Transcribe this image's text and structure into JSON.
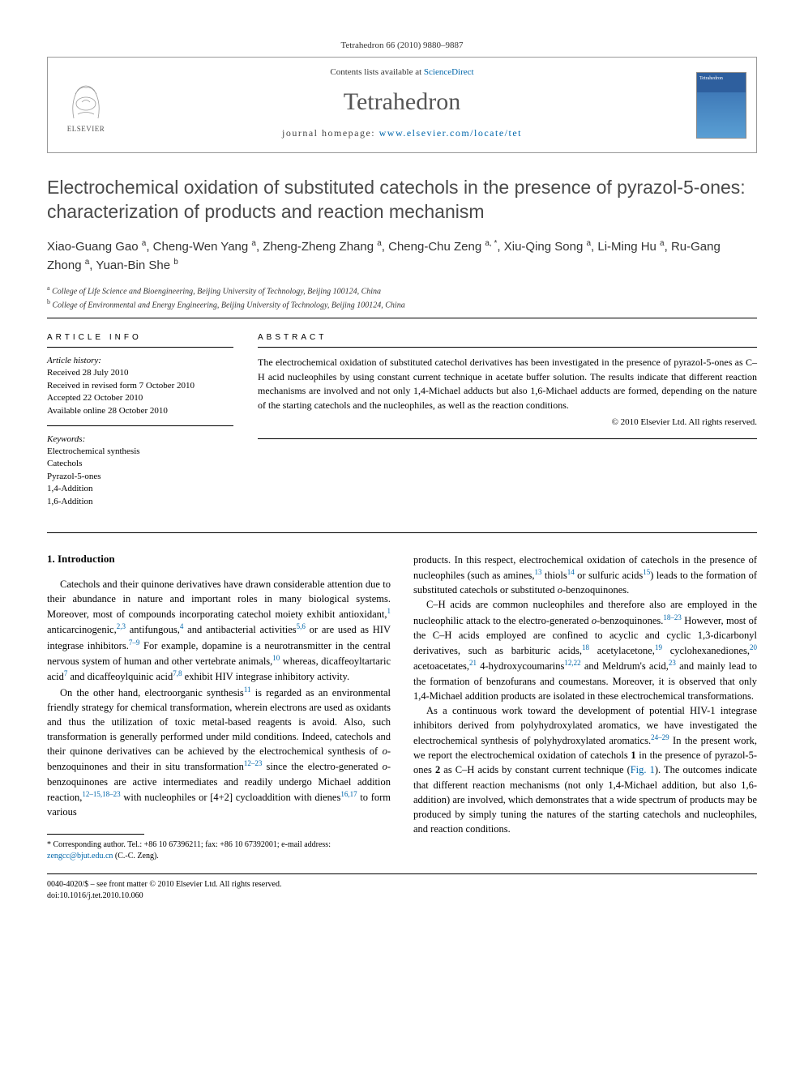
{
  "citation": "Tetrahedron 66 (2010) 9880–9887",
  "header": {
    "contents_line_prefix": "Contents lists available at ",
    "contents_link": "ScienceDirect",
    "journal": "Tetrahedron",
    "homepage_prefix": "journal homepage: ",
    "homepage_url": "www.elsevier.com/locate/tet",
    "elsevier": "ELSEVIER",
    "cover_text": "Tetrahedron"
  },
  "title": "Electrochemical oxidation of substituted catechols in the presence of pyrazol-5-ones: characterization of products and reaction mechanism",
  "authors_html": "Xiao-Guang Gao <sup>a</sup>, Cheng-Wen Yang <sup>a</sup>, Zheng-Zheng Zhang <sup>a</sup>, Cheng-Chu Zeng <sup>a, *</sup>, Xiu-Qing Song <sup>a</sup>, Li-Ming Hu <sup>a</sup>, Ru-Gang Zhong <sup>a</sup>, Yuan-Bin She <sup>b</sup>",
  "affiliations": [
    {
      "sup": "a",
      "text": "College of Life Science and Bioengineering, Beijing University of Technology, Beijing 100124, China"
    },
    {
      "sup": "b",
      "text": "College of Environmental and Energy Engineering, Beijing University of Technology, Beijing 100124, China"
    }
  ],
  "article_info": {
    "label": "ARTICLE INFO",
    "history_title": "Article history:",
    "history": [
      "Received 28 July 2010",
      "Received in revised form 7 October 2010",
      "Accepted 22 October 2010",
      "Available online 28 October 2010"
    ],
    "keywords_title": "Keywords:",
    "keywords": [
      "Electrochemical synthesis",
      "Catechols",
      "Pyrazol-5-ones",
      "1,4-Addition",
      "1,6-Addition"
    ]
  },
  "abstract": {
    "label": "ABSTRACT",
    "text": "The electrochemical oxidation of substituted catechol derivatives has been investigated in the presence of pyrazol-5-ones as C–H acid nucleophiles by using constant current technique in acetate buffer solution. The results indicate that different reaction mechanisms are involved and not only 1,4-Michael adducts but also 1,6-Michael adducts are formed, depending on the nature of the starting catechols and the nucleophiles, as well as the reaction conditions.",
    "copyright": "© 2010 Elsevier Ltd. All rights reserved."
  },
  "section_heading": "1. Introduction",
  "paragraphs": {
    "p1": "Catechols and their quinone derivatives have drawn considerable attention due to their abundance in nature and important roles in many biological systems. Moreover, most of compounds incorporating catechol moiety exhibit antioxidant,<sup>1</sup> anticarcinogenic,<sup>2,3</sup> antifungous,<sup>4</sup> and antibacterial activities<sup>5,6</sup> or are used as HIV integrase inhibitors.<sup>7–9</sup> For example, dopamine is a neurotransmitter in the central nervous system of human and other vertebrate animals,<sup>10</sup> whereas, dicaffeoyltartaric acid<sup>7</sup> and dicaffeoylquinic acid<sup>7,8</sup> exhibit HIV integrase inhibitory activity.",
    "p2": "On the other hand, electroorganic synthesis<sup>11</sup> is regarded as an environmental friendly strategy for chemical transformation, wherein electrons are used as oxidants and thus the utilization of toxic metal-based reagents is avoid. Also, such transformation is generally performed under mild conditions. Indeed, catechols and their quinone derivatives can be achieved by the electrochemical synthesis of <i>o</i>-benzoquinones and their in situ transformation<sup>12–23</sup> since the electro-generated <i>o</i>-benzoquinones are active intermediates and readily undergo Michael addition reaction,<sup>12–15,18–23</sup> with nucleophiles or [4+2] cycloaddition with dienes<sup>16,17</sup> to form various",
    "p3": "products. In this respect, electrochemical oxidation of catechols in the presence of nucleophiles (such as amines,<sup>13</sup> thiols<sup>14</sup> or sulfuric acids<sup>15</sup>) leads to the formation of substituted catechols or substituted <i>o</i>-benzoquinones.",
    "p4": "C–H acids are common nucleophiles and therefore also are employed in the nucleophilic attack to the electro-generated <i>o</i>-benzoquinones.<sup>18–23</sup> However, most of the C–H acids employed are confined to acyclic and cyclic 1,3-dicarbonyl derivatives, such as barbituric acids,<sup>18</sup> acetylacetone,<sup>19</sup> cyclohexanediones,<sup>20</sup> acetoacetates,<sup>21</sup> 4-hydroxycoumarins<sup>12,22</sup> and Meldrum's acid,<sup>23</sup> and mainly lead to the formation of benzofurans and coumestans. Moreover, it is observed that only 1,4-Michael addition products are isolated in these electrochemical transformations.",
    "p5": "As a continuous work toward the development of potential HIV-1 integrase inhibitors derived from polyhydroxylated aromatics, we have investigated the electrochemical synthesis of polyhydroxylated aromatics.<sup>24–29</sup> In the present work, we report the electrochemical oxidation of catechols <b>1</b> in the presence of pyrazol-5-ones <b>2</b> as C–H acids by constant current technique (<a>Fig. 1</a>). The outcomes indicate that different reaction mechanisms (not only 1,4-Michael addition, but also 1,6-addition) are involved, which demonstrates that a wide spectrum of products may be produced by simply tuning the natures of the starting catechols and nucleophiles, and reaction conditions."
  },
  "footnote": {
    "corr": "* Corresponding author. Tel.: +86 10 67396211; fax: +86 10 67392001; e-mail address: ",
    "email": "zengcc@bjut.edu.cn",
    "name": " (C.-C. Zeng)."
  },
  "footer": {
    "line1": "0040-4020/$ – see front matter © 2010 Elsevier Ltd. All rights reserved.",
    "line2": "doi:10.1016/j.tet.2010.10.060"
  },
  "colors": {
    "link": "#0066aa",
    "title": "#4a4a4a",
    "text": "#000000",
    "border": "#999999"
  }
}
